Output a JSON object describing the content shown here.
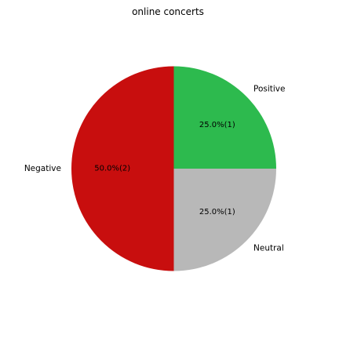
{
  "chart_data": {
    "type": "pie",
    "title": "online concerts",
    "slices": [
      {
        "label": "Positive",
        "value": 1,
        "pct_label": "25.0%(1)",
        "color": "#2dba4e"
      },
      {
        "label": "Neutral",
        "value": 1,
        "pct_label": "25.0%(1)",
        "color": "#b8b8b8"
      },
      {
        "label": "Negative",
        "value": 2,
        "pct_label": "50.0%(2)",
        "color": "#c80e0e"
      }
    ],
    "start_angle_deg": 90,
    "direction": "clockwise",
    "legend": "none"
  }
}
